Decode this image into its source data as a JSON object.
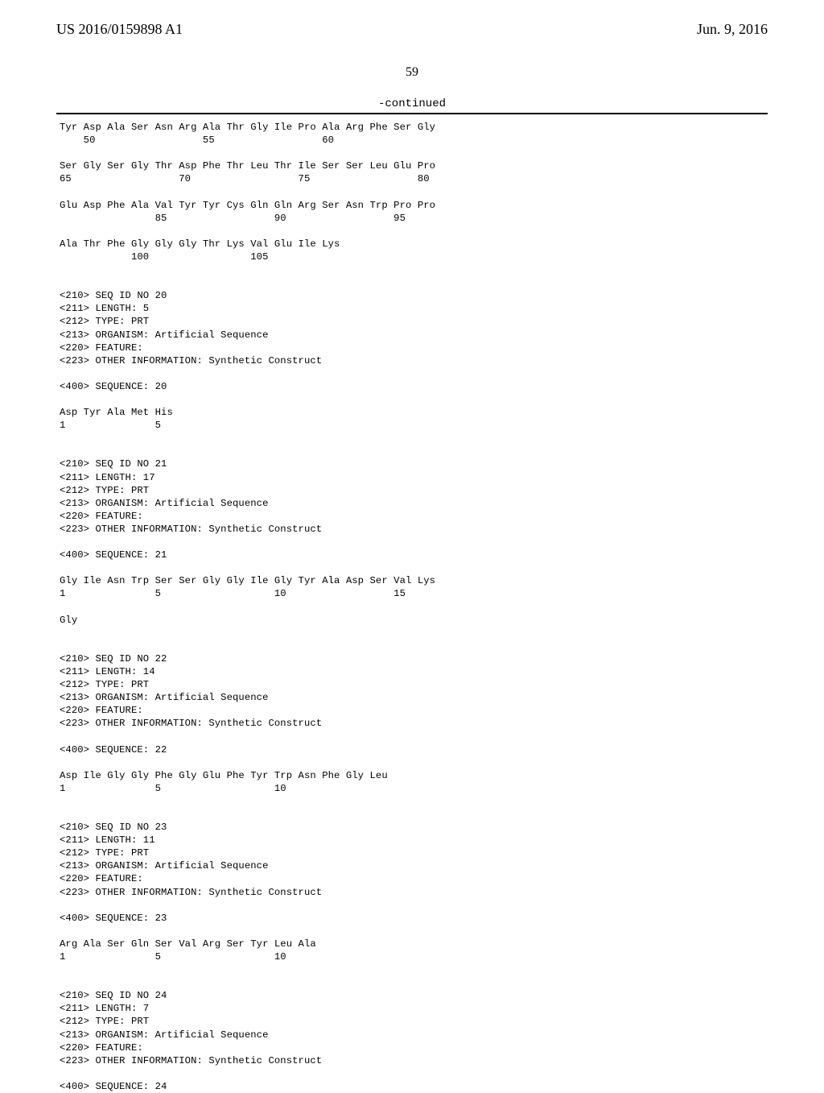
{
  "header": {
    "pub_number": "US 2016/0159898 A1",
    "pub_date": "Jun. 9, 2016"
  },
  "page_number": "59",
  "continued_label": "-continued",
  "sequence_text": "Tyr Asp Ala Ser Asn Arg Ala Thr Gly Ile Pro Ala Arg Phe Ser Gly\n    50                  55                  60\n\nSer Gly Ser Gly Thr Asp Phe Thr Leu Thr Ile Ser Ser Leu Glu Pro\n65                  70                  75                  80\n\nGlu Asp Phe Ala Val Tyr Tyr Cys Gln Gln Arg Ser Asn Trp Pro Pro\n                85                  90                  95\n\nAla Thr Phe Gly Gly Gly Thr Lys Val Glu Ile Lys\n            100                 105\n\n\n<210> SEQ ID NO 20\n<211> LENGTH: 5\n<212> TYPE: PRT\n<213> ORGANISM: Artificial Sequence\n<220> FEATURE:\n<223> OTHER INFORMATION: Synthetic Construct\n\n<400> SEQUENCE: 20\n\nAsp Tyr Ala Met His\n1               5\n\n\n<210> SEQ ID NO 21\n<211> LENGTH: 17\n<212> TYPE: PRT\n<213> ORGANISM: Artificial Sequence\n<220> FEATURE:\n<223> OTHER INFORMATION: Synthetic Construct\n\n<400> SEQUENCE: 21\n\nGly Ile Asn Trp Ser Ser Gly Gly Ile Gly Tyr Ala Asp Ser Val Lys\n1               5                   10                  15\n\nGly\n\n\n<210> SEQ ID NO 22\n<211> LENGTH: 14\n<212> TYPE: PRT\n<213> ORGANISM: Artificial Sequence\n<220> FEATURE:\n<223> OTHER INFORMATION: Synthetic Construct\n\n<400> SEQUENCE: 22\n\nAsp Ile Gly Gly Phe Gly Glu Phe Tyr Trp Asn Phe Gly Leu\n1               5                   10\n\n\n<210> SEQ ID NO 23\n<211> LENGTH: 11\n<212> TYPE: PRT\n<213> ORGANISM: Artificial Sequence\n<220> FEATURE:\n<223> OTHER INFORMATION: Synthetic Construct\n\n<400> SEQUENCE: 23\n\nArg Ala Ser Gln Ser Val Arg Ser Tyr Leu Ala\n1               5                   10\n\n\n<210> SEQ ID NO 24\n<211> LENGTH: 7\n<212> TYPE: PRT\n<213> ORGANISM: Artificial Sequence\n<220> FEATURE:\n<223> OTHER INFORMATION: Synthetic Construct\n\n<400> SEQUENCE: 24"
}
